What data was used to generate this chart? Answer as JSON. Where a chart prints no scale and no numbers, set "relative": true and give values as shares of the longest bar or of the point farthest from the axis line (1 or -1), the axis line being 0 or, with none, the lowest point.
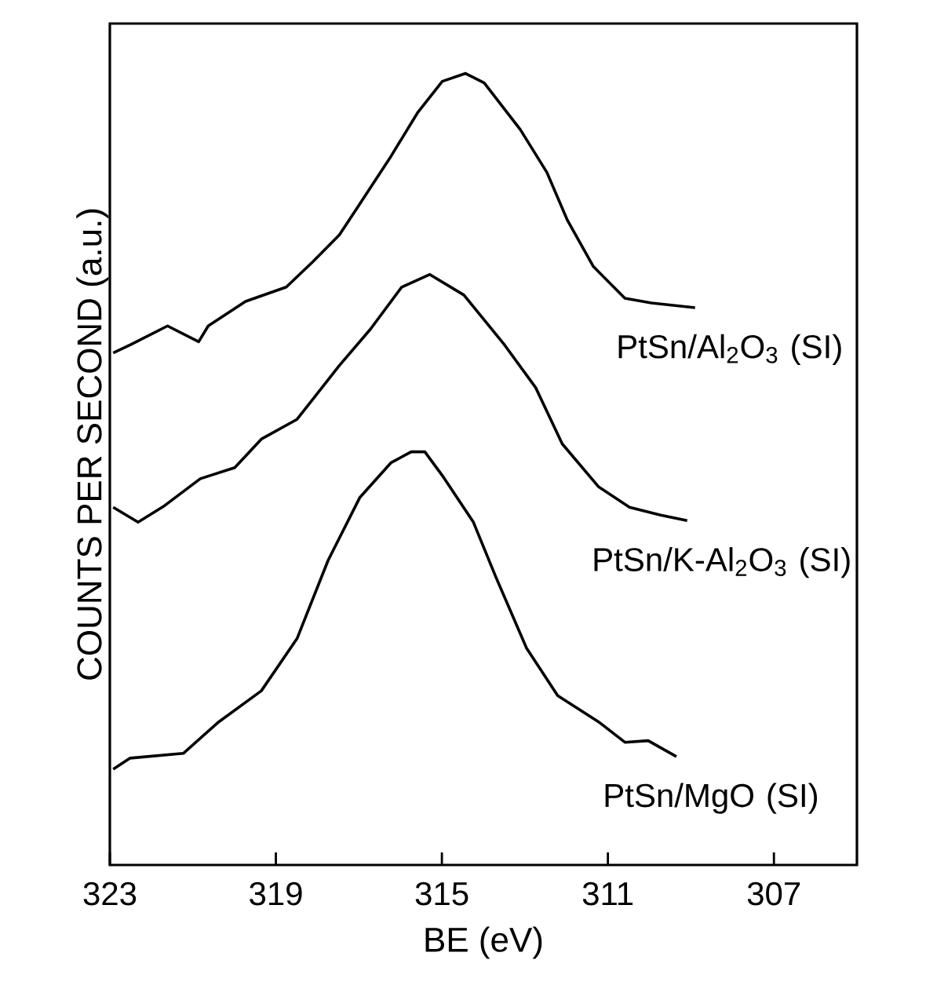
{
  "chart_data": {
    "type": "line",
    "xlabel": "BE (eV)",
    "ylabel": "COUNTS PER SECOND (a.u.)",
    "relative": true,
    "xlim": [
      323,
      305
    ],
    "xticks": [
      323,
      319,
      315,
      311,
      307
    ],
    "series": [
      {
        "name": "PtSn/Al$_{2}$O$_{3}$ (SI)",
        "color": "#000000",
        "x": [
          322.92,
          322.51,
          321.61,
          320.86,
          320.63,
          319.73,
          318.75,
          318.11,
          317.47,
          316.98,
          316.23,
          315.59,
          314.99,
          314.43,
          313.98,
          313.11,
          312.47,
          311.98,
          311.35,
          310.59,
          309.95,
          308.9
        ],
        "values": [
          0.647,
          0.657,
          0.681,
          0.661,
          0.681,
          0.712,
          0.73,
          0.762,
          0.796,
          0.835,
          0.895,
          0.95,
          0.99,
          1.0,
          0.988,
          0.929,
          0.875,
          0.815,
          0.756,
          0.716,
          0.71,
          0.704
        ]
      },
      {
        "name": "PtSn/K-Al$_{2}$O$_{3}$ (SI)",
        "color": "#000000",
        "x": [
          322.92,
          322.32,
          321.68,
          320.82,
          319.99,
          319.35,
          318.49,
          317.47,
          316.72,
          315.97,
          315.29,
          314.47,
          313.49,
          312.74,
          312.1,
          311.23,
          310.48,
          309.73,
          309.09
        ],
        "values": [
          0.452,
          0.433,
          0.454,
          0.488,
          0.502,
          0.538,
          0.563,
          0.631,
          0.677,
          0.73,
          0.746,
          0.72,
          0.657,
          0.603,
          0.532,
          0.478,
          0.452,
          0.442,
          0.435
        ]
      },
      {
        "name": "PtSn/MgO (SI)",
        "color": "#000000",
        "x": [
          322.92,
          322.51,
          321.23,
          320.37,
          319.35,
          318.49,
          317.74,
          316.98,
          316.23,
          315.74,
          315.41,
          314.99,
          314.24,
          313.71,
          312.96,
          312.21,
          311.23,
          310.59,
          310.03,
          309.35
        ],
        "values": [
          0.121,
          0.135,
          0.141,
          0.181,
          0.22,
          0.286,
          0.385,
          0.464,
          0.508,
          0.522,
          0.522,
          0.492,
          0.433,
          0.365,
          0.274,
          0.214,
          0.181,
          0.155,
          0.157,
          0.137
        ]
      }
    ]
  }
}
